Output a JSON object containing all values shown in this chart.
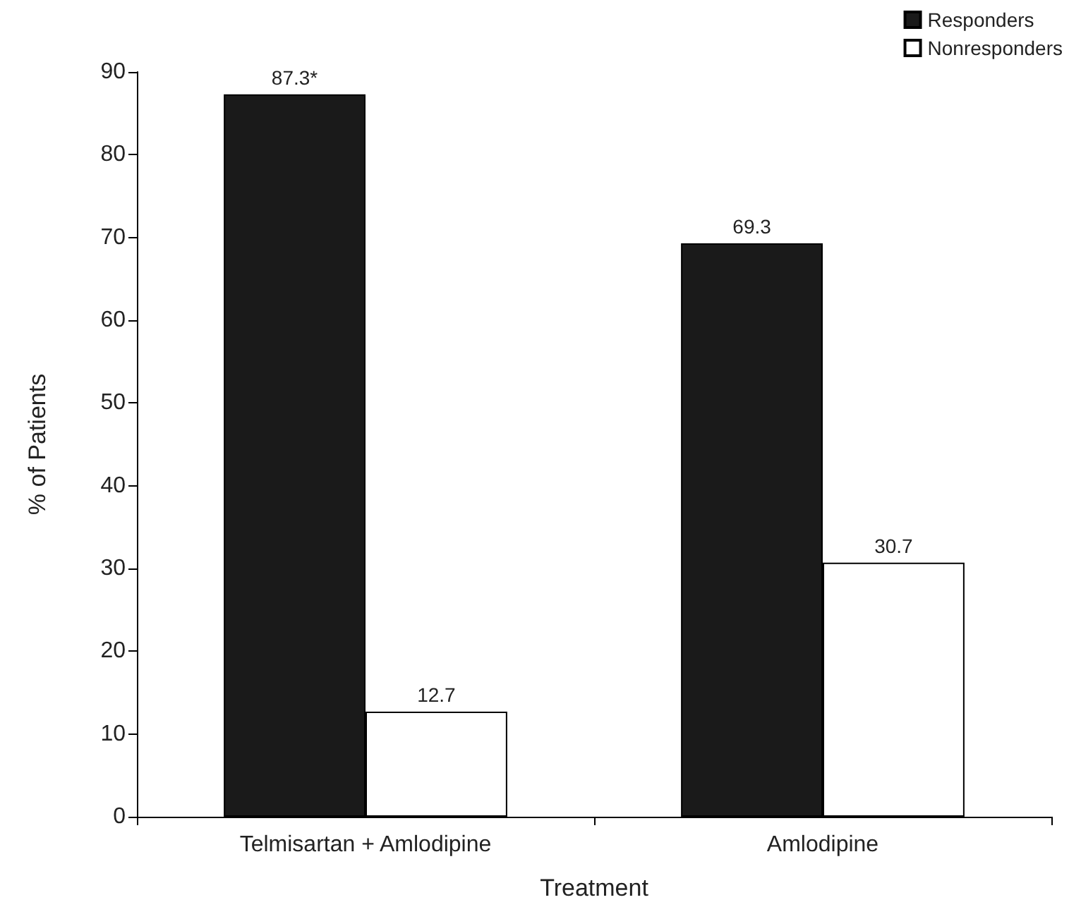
{
  "chart_data": {
    "type": "bar",
    "xlabel": "Treatment",
    "ylabel": "% of Patients",
    "categories": [
      "Telmisartan + Amlodipine",
      "Amlodipine"
    ],
    "series": [
      {
        "name": "Responders",
        "color": "#1a1a1a",
        "values": [
          87.3,
          69.3
        ],
        "value_labels": [
          "87.3*",
          "69.3"
        ]
      },
      {
        "name": "Nonresponders",
        "color": "#ffffff",
        "values": [
          12.7,
          30.7
        ],
        "value_labels": [
          "12.7",
          "30.7"
        ]
      }
    ],
    "ylim": [
      0,
      90
    ],
    "yticks": [
      0,
      10,
      20,
      30,
      40,
      50,
      60,
      70,
      80,
      90
    ],
    "legend": "top right"
  }
}
